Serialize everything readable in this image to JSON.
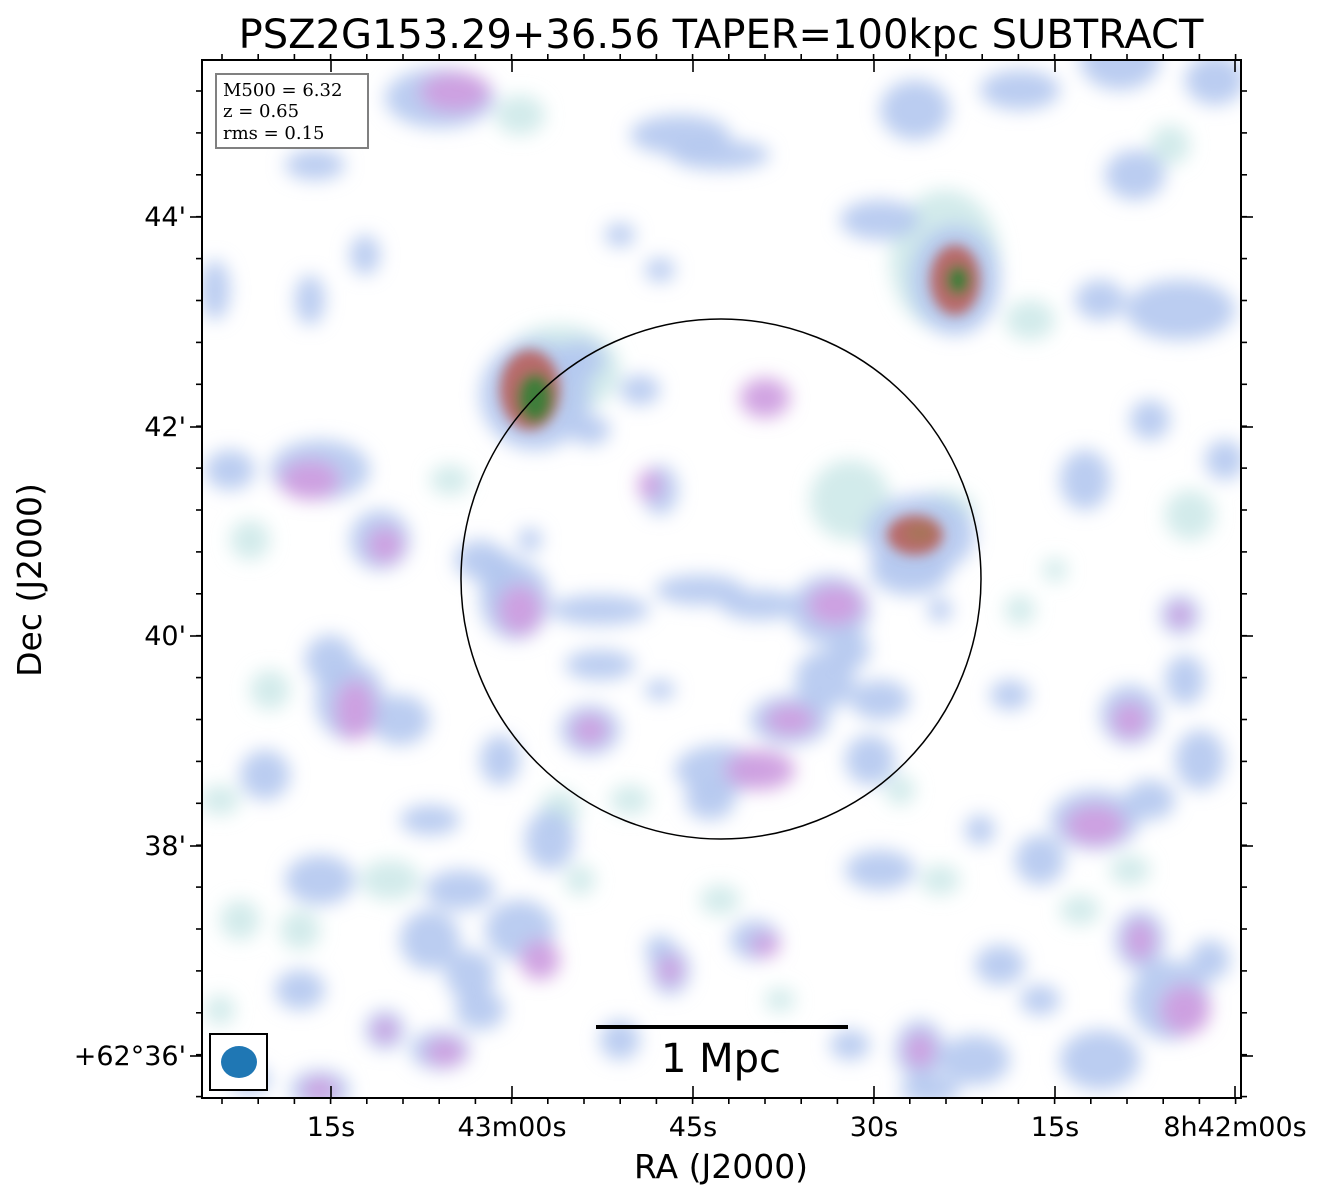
{
  "title": "PSZ2G153.29+36.56 TAPER=100kpc SUBTRACT",
  "info_box": {
    "lines": [
      "M500 = 6.32",
      "z = 0.65",
      "rms = 0.15"
    ]
  },
  "axes": {
    "xlabel": "RA (J2000)",
    "ylabel": "Dec (J2000)",
    "x_ticks": [
      "15s",
      "43m00s",
      "45s",
      "30s",
      "15s",
      "8h42m00s"
    ],
    "y_ticks": [
      "44'",
      "42'",
      "40'",
      "38'",
      "+62°36'"
    ]
  },
  "scale_bar": {
    "label": "1 Mpc"
  },
  "colors": {
    "faint": "#cde9e9",
    "low": "#b4c8ef",
    "mid": "#cf9ee0",
    "high": "#d98aa8",
    "peak_red": "#b86a6a",
    "peak_green": "#3f7d3a",
    "beam": "#1f77b4"
  }
}
